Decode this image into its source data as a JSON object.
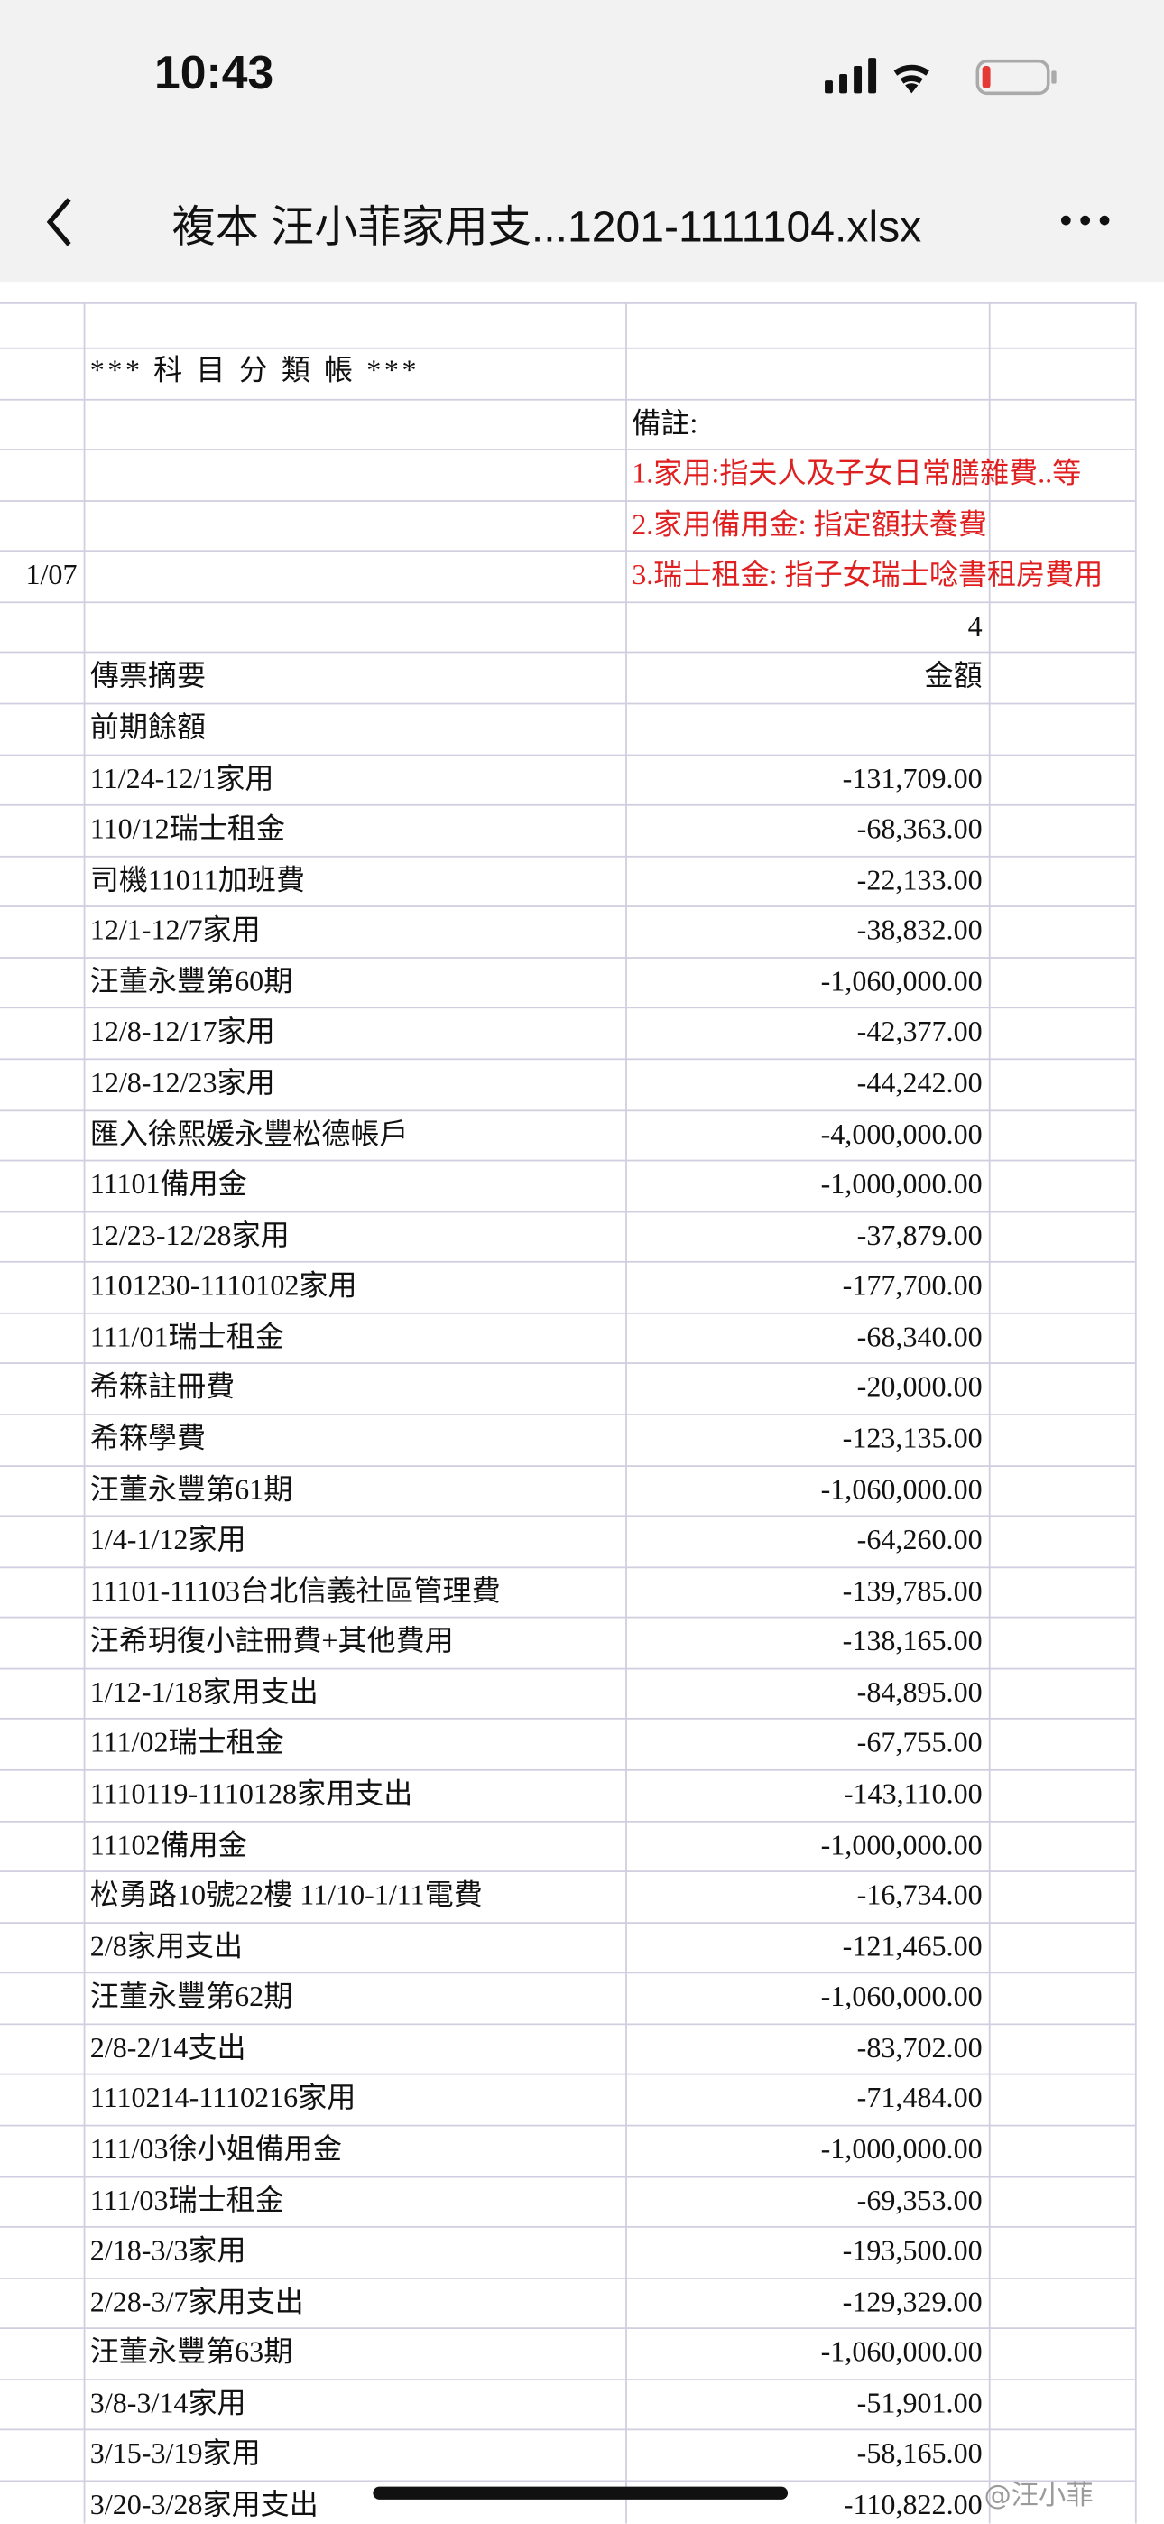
{
  "status": {
    "time": "10:43"
  },
  "nav": {
    "title": "複本 汪小菲家用支...1201-1111104.xlsx"
  },
  "sheet": {
    "heading": "*** 科 目 分 類 帳 ***",
    "note_label": "備註:",
    "notes": [
      "1.家用:指夫人及子女日常膳雜費..等",
      "2.家用備用金: 指定額扶養費",
      "3.瑞士租金: 指子女瑞士唸書租房費用"
    ],
    "date_fragment": "1/07",
    "page_number": "4",
    "columns": [
      "傳票摘要",
      "金額"
    ],
    "opening_balance_label": "前期餘額",
    "rows": [
      [
        "11/24-12/1家用",
        "-131,709.00"
      ],
      [
        "110/12瑞士租金",
        "-68,363.00"
      ],
      [
        "司機11011加班費",
        "-22,133.00"
      ],
      [
        "12/1-12/7家用",
        "-38,832.00"
      ],
      [
        "汪董永豐第60期",
        "-1,060,000.00"
      ],
      [
        "12/8-12/17家用",
        "-42,377.00"
      ],
      [
        "12/8-12/23家用",
        "-44,242.00"
      ],
      [
        "匯入徐熙媛永豐松德帳戶",
        "-4,000,000.00"
      ],
      [
        "11101備用金",
        "-1,000,000.00"
      ],
      [
        "12/23-12/28家用",
        "-37,879.00"
      ],
      [
        "1101230-1110102家用",
        "-177,700.00"
      ],
      [
        "111/01瑞士租金",
        "-68,340.00"
      ],
      [
        "希箖註冊費",
        "-20,000.00"
      ],
      [
        "希箖學費",
        "-123,135.00"
      ],
      [
        "汪董永豐第61期",
        "-1,060,000.00"
      ],
      [
        "1/4-1/12家用",
        "-64,260.00"
      ],
      [
        "11101-11103台北信義社區管理費",
        "-139,785.00"
      ],
      [
        "汪希玥復小註冊費+其他費用",
        "-138,165.00"
      ],
      [
        "1/12-1/18家用支出",
        "-84,895.00"
      ],
      [
        "111/02瑞士租金",
        "-67,755.00"
      ],
      [
        "1110119-1110128家用支出",
        "-143,110.00"
      ],
      [
        "11102備用金",
        "-1,000,000.00"
      ],
      [
        "松勇路10號22樓 11/10-1/11電費",
        "-16,734.00"
      ],
      [
        "2/8家用支出",
        "-121,465.00"
      ],
      [
        "汪董永豐第62期",
        "-1,060,000.00"
      ],
      [
        "2/8-2/14支出",
        "-83,702.00"
      ],
      [
        "1110214-1110216家用",
        "-71,484.00"
      ],
      [
        "111/03徐小姐備用金",
        "-1,000,000.00"
      ],
      [
        "111/03瑞士租金",
        "-69,353.00"
      ],
      [
        "2/18-3/3家用",
        "-193,500.00"
      ],
      [
        "2/28-3/7家用支出",
        "-129,329.00"
      ],
      [
        "汪董永豐第63期",
        "-1,060,000.00"
      ],
      [
        "3/8-3/14家用",
        "-51,901.00"
      ],
      [
        "3/15-3/19家用",
        "-58,165.00"
      ],
      [
        "3/20-3/28家用支出",
        "-110,822.00"
      ]
    ]
  },
  "watermark": "@汪小菲"
}
